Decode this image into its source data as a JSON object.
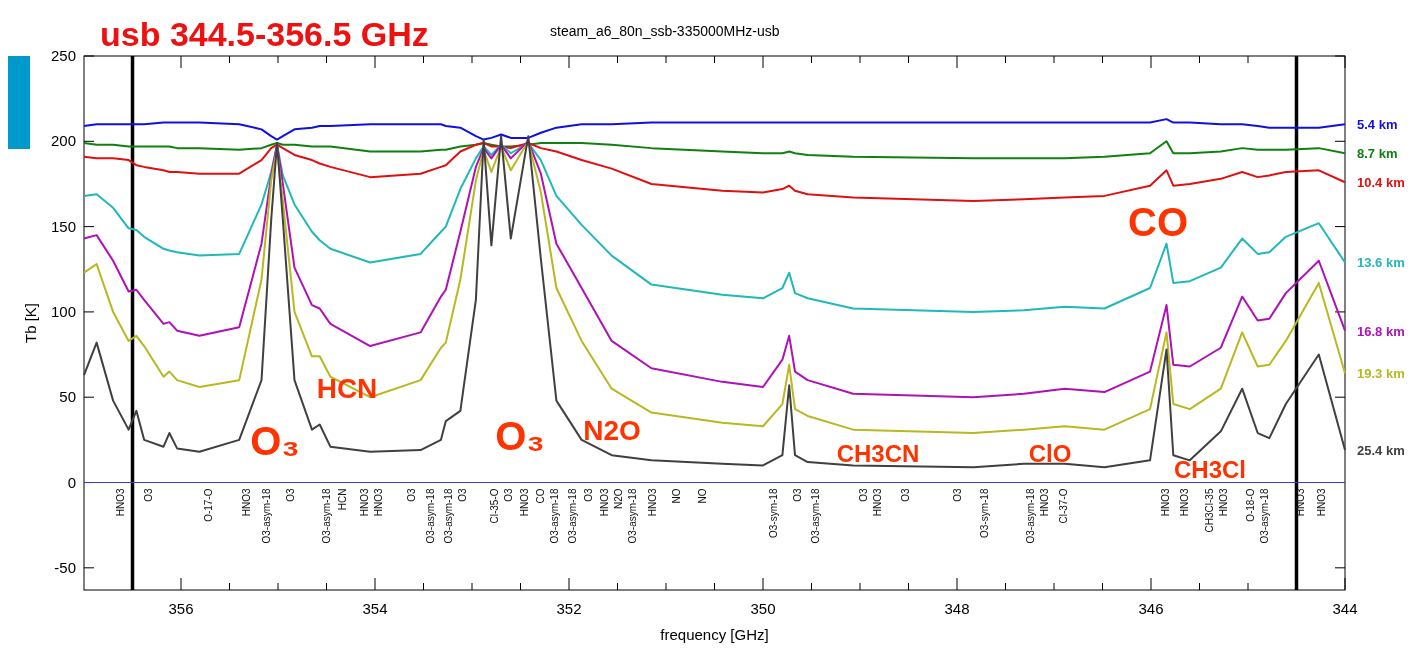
{
  "chart_data": {
    "type": "line",
    "title": "usb 344.5-356.5 GHz",
    "subtitle": "steam_a6_80n_ssb-335000MHz-usb",
    "xlabel": "frequency [GHz]",
    "ylabel": "Tb [K]",
    "xlim": [
      357,
      344
    ],
    "ylim": [
      -63,
      250
    ],
    "xticks": [
      {
        "value": 356.5,
        "label": null
      },
      356,
      {
        "value": 355.5,
        "label": null
      },
      {
        "value": 355,
        "label": null
      },
      {
        "value": 354.5,
        "label": null
      },
      354,
      {
        "value": 353.5,
        "label": null
      },
      {
        "value": 353,
        "label": null
      },
      {
        "value": 352.5,
        "label": null
      },
      352,
      {
        "value": 351.5,
        "label": null
      },
      {
        "value": 351,
        "label": null
      },
      {
        "value": 350.5,
        "label": null
      },
      350,
      {
        "value": 349.5,
        "label": null
      },
      {
        "value": 349,
        "label": null
      },
      {
        "value": 348.5,
        "label": null
      },
      348,
      {
        "value": 347.5,
        "label": null
      },
      {
        "value": 347,
        "label": null
      },
      {
        "value": 346.5,
        "label": null
      },
      346,
      {
        "value": 345.5,
        "label": null
      },
      {
        "value": 345,
        "label": null
      },
      {
        "value": 344.5,
        "label": null
      },
      344
    ],
    "yticks": [
      -50,
      0,
      50,
      100,
      150,
      200,
      250
    ],
    "grid": false,
    "legend": "right",
    "marker": "none",
    "line_style": "solid",
    "x": [
      357.0,
      356.87,
      356.7,
      356.54,
      356.46,
      356.38,
      356.18,
      356.12,
      356.04,
      355.81,
      355.4,
      355.17,
      355.07,
      355.01,
      354.95,
      354.83,
      354.65,
      354.57,
      354.46,
      354.05,
      353.53,
      353.32,
      353.27,
      353.12,
      352.96,
      352.88,
      352.8,
      352.7,
      352.6,
      352.42,
      352.29,
      352.13,
      351.87,
      351.56,
      351.15,
      350.42,
      350.0,
      349.8,
      349.73,
      349.67,
      349.54,
      349.07,
      347.83,
      347.31,
      346.89,
      346.48,
      346.01,
      345.84,
      345.77,
      345.6,
      345.28,
      345.06,
      344.9,
      344.78,
      344.61,
      344.27,
      344.0
    ],
    "series": [
      {
        "name": "5.4 km",
        "color": "#1010e0",
        "values": [
          209,
          210,
          210,
          210,
          210,
          210,
          211,
          211,
          211,
          211,
          210,
          207,
          203,
          201,
          203,
          207,
          208,
          209,
          209,
          210,
          210,
          210,
          209,
          208,
          203,
          201,
          202,
          204,
          202,
          202,
          205,
          208,
          210,
          210,
          211,
          211,
          211,
          211,
          211,
          211,
          211,
          211,
          211,
          211,
          211,
          211,
          211,
          213,
          211,
          211,
          210,
          210,
          209,
          208,
          208,
          208,
          210
        ]
      },
      {
        "name": "8.7 km",
        "color": "#108010",
        "values": [
          199,
          198,
          198,
          197,
          197,
          197,
          197,
          197,
          196,
          196,
          195,
          196,
          198,
          199,
          198,
          198,
          197,
          197,
          197,
          194,
          194,
          195,
          195,
          197,
          198,
          199,
          198,
          197,
          197,
          198,
          199,
          199,
          199,
          198,
          196,
          194,
          193,
          193,
          194,
          193,
          192,
          191,
          190,
          190,
          190,
          191,
          193,
          200,
          193,
          193,
          194,
          196,
          195,
          195,
          195,
          196,
          193
        ]
      },
      {
        "name": "10.4 km",
        "color": "#e01010",
        "values": [
          191,
          190,
          190,
          189,
          186,
          185,
          183,
          182,
          182,
          181,
          181,
          189,
          196,
          198,
          196,
          192,
          189,
          187,
          185,
          179,
          181,
          185,
          186,
          194,
          198,
          199,
          197,
          197,
          196,
          199,
          196,
          194,
          189,
          184,
          175,
          171,
          170,
          172,
          174,
          171,
          169,
          167,
          165,
          166,
          167,
          168,
          174,
          183,
          174,
          175,
          178,
          182,
          179,
          180,
          182,
          183,
          176
        ]
      },
      {
        "name": "13.6 km",
        "color": "#20b8b8",
        "values": [
          168,
          169,
          161,
          149,
          148,
          144,
          137,
          136,
          135,
          133,
          134,
          163,
          182,
          198,
          180,
          163,
          147,
          142,
          137,
          129,
          134,
          147,
          150,
          172,
          190,
          197,
          192,
          198,
          193,
          199,
          189,
          168,
          151,
          133,
          116,
          110,
          108,
          114,
          123,
          111,
          108,
          102,
          100,
          101,
          103,
          102,
          114,
          140,
          117,
          118,
          126,
          143,
          134,
          135,
          144,
          152,
          129
        ]
      },
      {
        "name": "16.8 km",
        "color": "#b010b8",
        "values": [
          143,
          145,
          130,
          112,
          113,
          107,
          93,
          94,
          89,
          86,
          91,
          140,
          180,
          198,
          175,
          126,
          104,
          102,
          93,
          80,
          88,
          109,
          113,
          147,
          185,
          196,
          190,
          198,
          190,
          200,
          181,
          140,
          114,
          83,
          67,
          59,
          56,
          72,
          86,
          65,
          60,
          52,
          50,
          52,
          55,
          53,
          65,
          104,
          69,
          68,
          79,
          109,
          95,
          96,
          111,
          130,
          89
        ]
      },
      {
        "name": "19.3 km",
        "color": "#b8b820",
        "values": [
          123,
          128,
          100,
          83,
          86,
          80,
          62,
          65,
          60,
          56,
          60,
          119,
          177,
          196,
          165,
          100,
          74,
          74,
          62,
          50,
          60,
          79,
          82,
          119,
          177,
          195,
          182,
          197,
          183,
          200,
          170,
          114,
          83,
          55,
          41,
          35,
          33,
          46,
          69,
          43,
          39,
          31,
          29,
          31,
          33,
          31,
          43,
          88,
          46,
          43,
          55,
          88,
          68,
          69,
          83,
          117,
          64
        ]
      },
      {
        "name": "25.4 km",
        "color": "#404040",
        "values": [
          63,
          82,
          48,
          31,
          42,
          25,
          21,
          29,
          20,
          18,
          25,
          60,
          154,
          199,
          154,
          60,
          31,
          34,
          21,
          18,
          19,
          25,
          36,
          42,
          107,
          201,
          139,
          203,
          143,
          203,
          131,
          48,
          25,
          16,
          13,
          11,
          10,
          16,
          57,
          16,
          12,
          10,
          9,
          11,
          11,
          9,
          13,
          78,
          16,
          13,
          30,
          55,
          29,
          26,
          46,
          75,
          19
        ]
      }
    ],
    "ref_lines": [
      {
        "axis": "x",
        "value": 356.5,
        "color": "#000000"
      },
      {
        "axis": "x",
        "value": 344.5,
        "color": "#000000"
      },
      {
        "axis": "y",
        "value": 0,
        "color": "#3040c0"
      }
    ],
    "annotations": [
      "O₃",
      "HCN",
      "O₃",
      "N2O",
      "CH3CN",
      "ClO",
      "CO",
      "CH3Cl",
      "HNO3",
      "O3",
      "O-17-O",
      "HNO3",
      "O3-asym-18",
      "O3",
      "O3-asym-18",
      "HCN",
      "HNO3",
      "HNO3",
      "O3",
      "O3-asym-18",
      "O3-asym-18",
      "O3",
      "Cl-35-O",
      "O3",
      "HNO3",
      "CO",
      "O3-asym-18",
      "O3-asym-18",
      "O3",
      "HNO3",
      "N2O",
      "O3-asym-18",
      "HNO3",
      "NO",
      "NO",
      "O3-sym-18",
      "O3",
      "O3-asym-18",
      "O3",
      "HNO3",
      "O3",
      "O3",
      "O3-sym-18",
      "O3-asym-18",
      "HNO3",
      "Cl-37-O",
      "HNO3",
      "HNO3",
      "CH3Cl-35",
      "HNO3",
      "O-18-O",
      "O3-asym-18",
      "HNO3",
      "HNO3"
    ]
  }
}
